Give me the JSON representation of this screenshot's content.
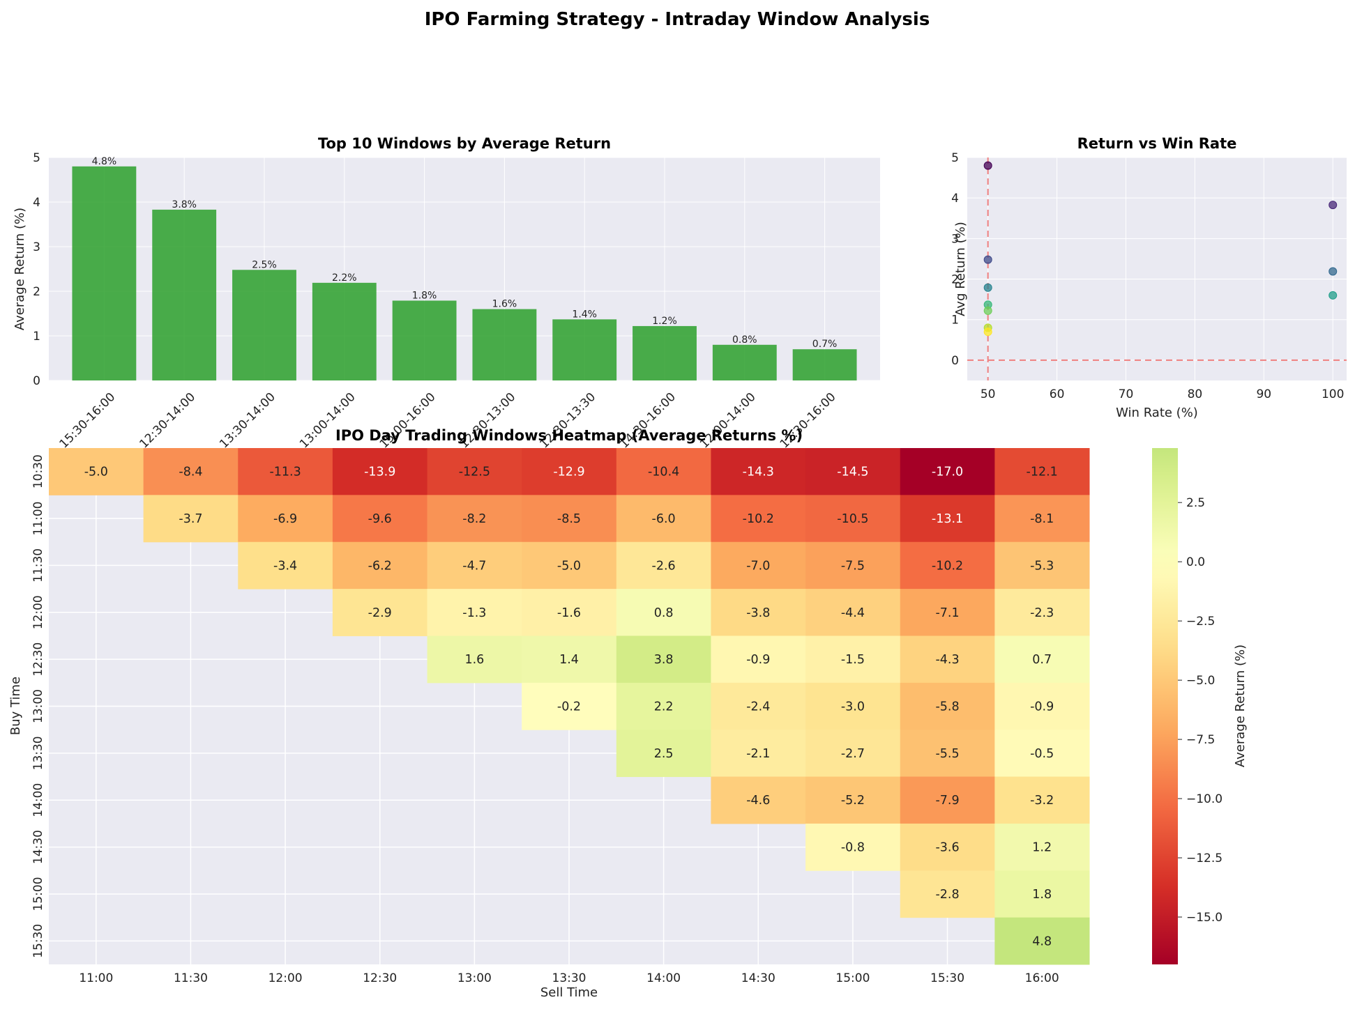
{
  "title": "IPO Farming Strategy - Intraday Window Analysis",
  "colors": {
    "bar": "#2ca02c",
    "axes_bg": "#eaeaf2",
    "grid": "#ffffff",
    "refline": "#f08080"
  },
  "chart_data": [
    {
      "type": "bar",
      "title": "Top 10 Windows by Average Return",
      "xlabel": "",
      "ylabel": "Average Return (%)",
      "ylim": [
        0,
        5
      ],
      "yticks": [
        0,
        1,
        2,
        3,
        4,
        5
      ],
      "categories": [
        "15:30-16:00",
        "12:30-14:00",
        "13:30-14:00",
        "13:00-14:00",
        "15:00-16:00",
        "12:30-13:00",
        "12:30-13:30",
        "14:30-16:00",
        "12:00-14:00",
        "12:30-16:00"
      ],
      "values": [
        4.8,
        3.83,
        2.48,
        2.19,
        1.79,
        1.6,
        1.37,
        1.22,
        0.8,
        0.7
      ],
      "data_labels": [
        "4.8%",
        "3.8%",
        "2.5%",
        "2.2%",
        "1.8%",
        "1.6%",
        "1.4%",
        "1.2%",
        "0.8%",
        "0.7%"
      ]
    },
    {
      "type": "scatter",
      "title": "Return vs Win Rate",
      "xlabel": "Win Rate (%)",
      "ylabel": "Avg Return (%)",
      "xlim": [
        47,
        102
      ],
      "ylim": [
        -0.5,
        5
      ],
      "xticks": [
        50,
        60,
        70,
        80,
        90,
        100
      ],
      "yticks": [
        0,
        1,
        2,
        3,
        4,
        5
      ],
      "reference_lines": {
        "x": 50,
        "y": 0
      },
      "points": [
        {
          "x": 50,
          "y": 4.8,
          "color": "#440154"
        },
        {
          "x": 100,
          "y": 3.83,
          "color": "#482878"
        },
        {
          "x": 50,
          "y": 2.48,
          "color": "#3e4989"
        },
        {
          "x": 100,
          "y": 2.19,
          "color": "#31688e"
        },
        {
          "x": 50,
          "y": 1.79,
          "color": "#26828e"
        },
        {
          "x": 100,
          "y": 1.6,
          "color": "#1f9e89"
        },
        {
          "x": 50,
          "y": 1.37,
          "color": "#35b779"
        },
        {
          "x": 50,
          "y": 1.22,
          "color": "#6ece58"
        },
        {
          "x": 50,
          "y": 0.8,
          "color": "#b5de2b"
        },
        {
          "x": 50,
          "y": 0.7,
          "color": "#fde725"
        }
      ]
    },
    {
      "type": "heatmap",
      "title": "IPO Day Trading Windows Heatmap (Average Returns %)",
      "xlabel": "Sell Time",
      "ylabel": "Buy Time",
      "x_categories": [
        "11:00",
        "11:30",
        "12:00",
        "12:30",
        "13:00",
        "13:30",
        "14:00",
        "14:30",
        "15:00",
        "15:30",
        "16:00"
      ],
      "y_categories": [
        "10:30",
        "11:00",
        "11:30",
        "12:00",
        "12:30",
        "13:00",
        "13:30",
        "14:00",
        "14:30",
        "15:00",
        "15:30"
      ],
      "values": [
        [
          -5.0,
          -8.4,
          -11.3,
          -13.9,
          -12.5,
          -12.9,
          -10.4,
          -14.3,
          -14.5,
          -17.0,
          -12.1
        ],
        [
          null,
          -3.7,
          -6.9,
          -9.6,
          -8.2,
          -8.5,
          -6.0,
          -10.2,
          -10.5,
          -13.1,
          -8.1
        ],
        [
          null,
          null,
          -3.4,
          -6.2,
          -4.7,
          -5.0,
          -2.6,
          -7.0,
          -7.5,
          -10.2,
          -5.3
        ],
        [
          null,
          null,
          null,
          -2.9,
          -1.3,
          -1.6,
          0.8,
          -3.8,
          -4.4,
          -7.1,
          -2.3
        ],
        [
          null,
          null,
          null,
          null,
          1.6,
          1.4,
          3.8,
          -0.9,
          -1.5,
          -4.3,
          0.7
        ],
        [
          null,
          null,
          null,
          null,
          null,
          -0.2,
          2.2,
          -2.4,
          -3.0,
          -5.8,
          -0.9
        ],
        [
          null,
          null,
          null,
          null,
          null,
          null,
          2.5,
          -2.1,
          -2.7,
          -5.5,
          -0.5
        ],
        [
          null,
          null,
          null,
          null,
          null,
          null,
          null,
          -4.6,
          -5.2,
          -7.9,
          -3.2
        ],
        [
          null,
          null,
          null,
          null,
          null,
          null,
          null,
          null,
          -0.8,
          -3.6,
          1.2
        ],
        [
          null,
          null,
          null,
          null,
          null,
          null,
          null,
          null,
          null,
          -2.8,
          1.8
        ],
        [
          null,
          null,
          null,
          null,
          null,
          null,
          null,
          null,
          null,
          null,
          4.8
        ]
      ],
      "colormap": "RdYlGn",
      "vmin": -17.0,
      "vmax": 4.8,
      "center": 0,
      "colorbar_label": "Average Return (%)",
      "colorbar_ticks": [
        2.5,
        0.0,
        -2.5,
        -5.0,
        -7.5,
        -10.0,
        -12.5,
        -15.0
      ],
      "colorbar_tick_labels": [
        "2.5",
        "0.0",
        "−2.5",
        "−5.0",
        "−7.5",
        "−10.0",
        "−12.5",
        "−15.0"
      ]
    }
  ]
}
